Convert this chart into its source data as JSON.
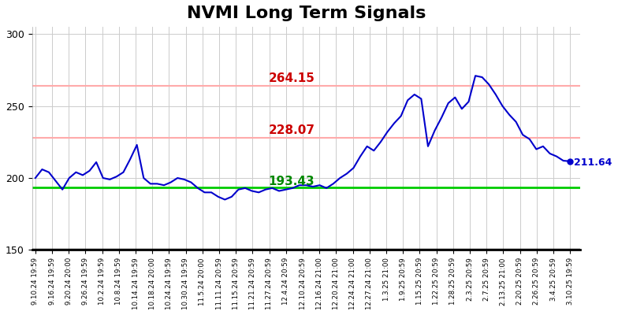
{
  "title": "NVMI Long Term Signals",
  "title_fontsize": 16,
  "title_fontweight": "bold",
  "ylim": [
    150,
    305
  ],
  "yticks": [
    150,
    200,
    250,
    300
  ],
  "line_color": "#0000cc",
  "line_width": 1.5,
  "hline_green": 193.43,
  "hline_green_color": "#00cc00",
  "hline_red1": 228.07,
  "hline_red2": 264.15,
  "hline_red_color": "#ffaaaa",
  "hline_red_linewidth": 1.5,
  "hline_green_linewidth": 2.0,
  "label_264": "264.15",
  "label_228": "228.07",
  "label_193": "193.43",
  "label_end": "211.64",
  "label_264_color": "#cc0000",
  "label_228_color": "#cc0000",
  "label_193_color": "#008800",
  "label_end_color": "#0000cc",
  "background_color": "#ffffff",
  "grid_color": "#cccccc",
  "tick_labels": [
    "9.10.24 19:59",
    "9.16.24 19:59",
    "9.20.24 20:00",
    "9.26.24 19:59",
    "10.2.24 19:59",
    "10.8.24 19:59",
    "10.14.24 19:59",
    "10.18.24 20:00",
    "10.24.24 19:59",
    "10.30.24 19:59",
    "11.5.24 20:00",
    "11.11.24 20:59",
    "11.15.24 20:59",
    "11.21.24 20:59",
    "11.27.24 20:59",
    "12.4.24 20:59",
    "12.10.24 20:59",
    "12.16.24 21:00",
    "12.20.24 21:00",
    "12.24.24 21:00",
    "12.27.24 21:00",
    "1.3.25 21:00",
    "1.9.25 20:59",
    "1.15.25 20:59",
    "1.22.25 20:59",
    "1.28.25 20:59",
    "2.3.25 20:59",
    "2.7.25 20:59",
    "2.13.25 21:00",
    "2.20.25 20:59",
    "2.26.25 20:59",
    "3.4.25 20:59",
    "3.10.25 19:59"
  ],
  "values": [
    200,
    206,
    204,
    198,
    192,
    200,
    204,
    202,
    205,
    211,
    200,
    199,
    201,
    204,
    213,
    223,
    200,
    196,
    196,
    195,
    197,
    200,
    199,
    197,
    193,
    190,
    190,
    187,
    185,
    187,
    192,
    193,
    191,
    190,
    192,
    193,
    191,
    192,
    193,
    195,
    195,
    194,
    195,
    193,
    196,
    200,
    203,
    207,
    215,
    222,
    219,
    225,
    232,
    238,
    243,
    254,
    258,
    255,
    222,
    233,
    242,
    252,
    256,
    248,
    253,
    271,
    270,
    265,
    258,
    250,
    244,
    239,
    230,
    227,
    220,
    222,
    217,
    215,
    212,
    211.64
  ]
}
